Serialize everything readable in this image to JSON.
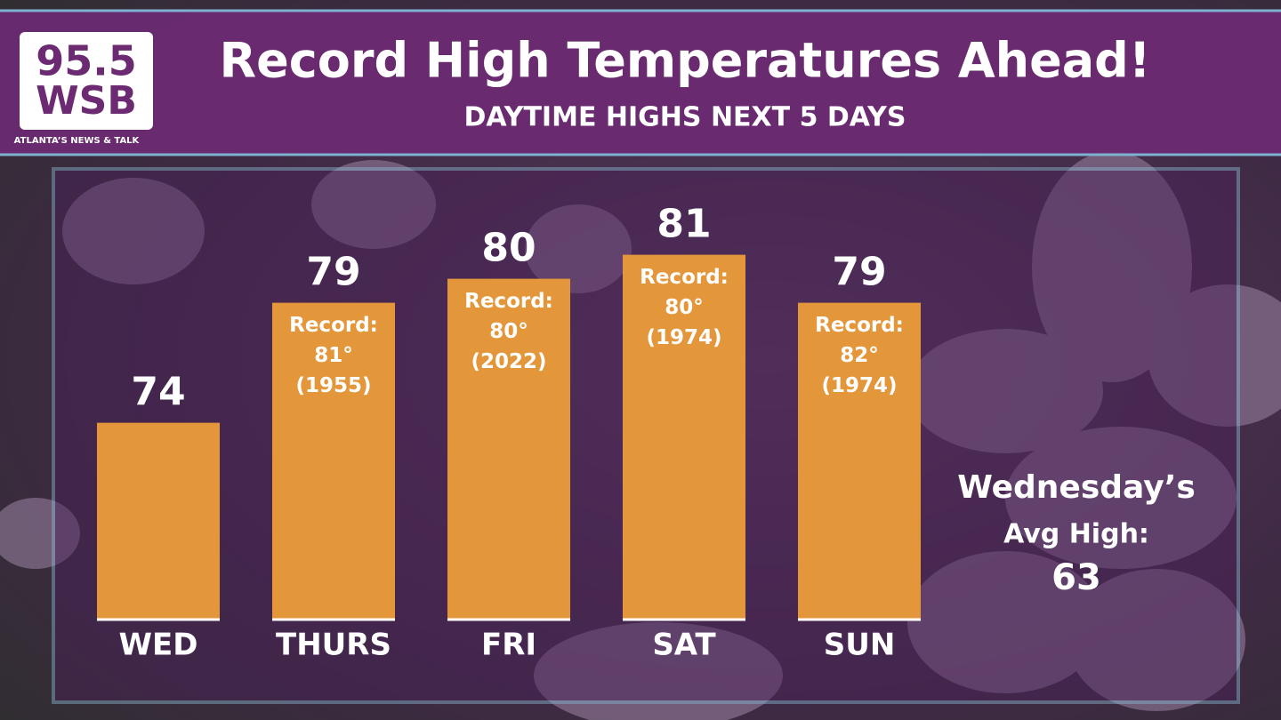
{
  "logo": {
    "line1": "95.5",
    "line2": "WSB",
    "tagline": "ATLANTA’S NEWS & TALK"
  },
  "chart_data": {
    "type": "bar",
    "title": "Record High Temperatures Ahead!",
    "subtitle": "DAYTIME HIGHS NEXT 5 DAYS",
    "categories": [
      "WED",
      "THURS",
      "FRI",
      "SAT",
      "SUN"
    ],
    "values": [
      74,
      79,
      80,
      81,
      79
    ],
    "color": "#e4963a",
    "records": [
      null,
      [
        "Record:",
        "81°",
        "(1955)"
      ],
      [
        "Record:",
        "80°",
        "(2022)"
      ],
      [
        "Record:",
        "80°",
        "(1974)"
      ],
      [
        "Record:",
        "82°",
        "(1974)"
      ]
    ],
    "note": {
      "lines": [
        "Wednesday’s",
        "Avg High:"
      ],
      "value": 63
    }
  }
}
